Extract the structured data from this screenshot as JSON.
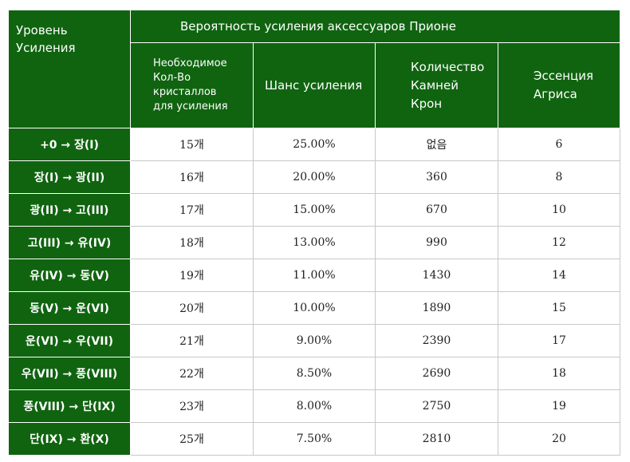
{
  "table": {
    "header": {
      "level": "Уровень\nУсиления",
      "title": "Вероятность усиления аксессуаров Прионе",
      "columns": [
        "Необходимое\nКол-Во\nкристаллов\nдля усиления",
        "Шанс усиления",
        "Количество\nКамней\nКрон",
        "Эссенция\nАгриса"
      ]
    },
    "rows": [
      {
        "level": "+0 → 장(I)",
        "crystals": "15개",
        "chance": "25.00%",
        "stones": "없음",
        "essence": "6"
      },
      {
        "level": "장(I) → 광(II)",
        "crystals": "16개",
        "chance": "20.00%",
        "stones": "360",
        "essence": "8"
      },
      {
        "level": "광(II) → 고(III)",
        "crystals": "17개",
        "chance": "15.00%",
        "stones": "670",
        "essence": "10"
      },
      {
        "level": "고(III) → 유(IV)",
        "crystals": "18개",
        "chance": "13.00%",
        "stones": "990",
        "essence": "12"
      },
      {
        "level": "유(IV) → 동(V)",
        "crystals": "19개",
        "chance": "11.00%",
        "stones": "1430",
        "essence": "14"
      },
      {
        "level": "동(V) → 운(VI)",
        "crystals": "20개",
        "chance": "10.00%",
        "stones": "1890",
        "essence": "15"
      },
      {
        "level": "운(VI) → 우(VII)",
        "crystals": "21개",
        "chance": "9.00%",
        "stones": "2390",
        "essence": "17"
      },
      {
        "level": "우(VII) → 풍(VIII)",
        "crystals": "22개",
        "chance": "8.50%",
        "stones": "2690",
        "essence": "18"
      },
      {
        "level": "풍(VIII) → 단(IX)",
        "crystals": "23개",
        "chance": "8.00%",
        "stones": "2750",
        "essence": "19"
      },
      {
        "level": "단(IX) → 환(X)",
        "crystals": "25개",
        "chance": "7.50%",
        "stones": "2810",
        "essence": "20"
      }
    ]
  },
  "colors": {
    "header_green": "#106410",
    "text_white": "#ffffff",
    "grid_line": "#c8c8c8"
  }
}
